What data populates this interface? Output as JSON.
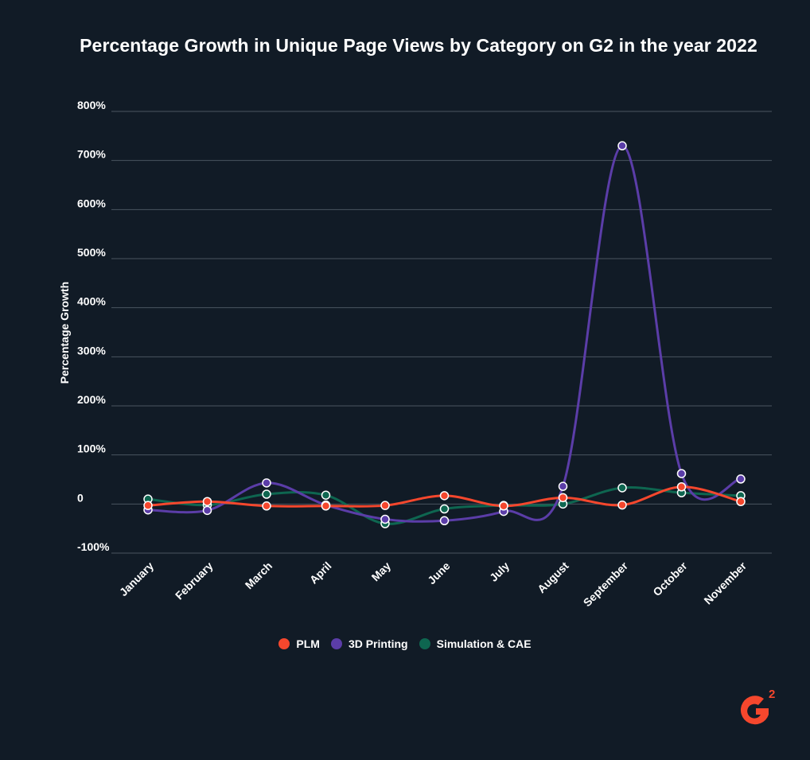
{
  "chart_data": {
    "type": "line",
    "title": "Percentage Growth in Unique Page Views by Category on G2 in the year 2022",
    "xlabel": "",
    "ylabel": "Percentage Growth",
    "categories": [
      "January",
      "February",
      "March",
      "April",
      "May",
      "June",
      "July",
      "August",
      "September",
      "October",
      "November"
    ],
    "yticks": [
      "-100%",
      "0",
      "100%",
      "200%",
      "300%",
      "400%",
      "500%",
      "600%",
      "700%",
      "800%"
    ],
    "ylim": [
      -100,
      800
    ],
    "grid": true,
    "legend_position": "bottom",
    "series": [
      {
        "name": "PLM",
        "color": "#f5472d",
        "values": [
          -3,
          5,
          -4,
          -4,
          -3,
          17,
          -4,
          13,
          -2,
          35,
          5
        ]
      },
      {
        "name": "3D Printing",
        "color": "#5b3da8",
        "values": [
          -12,
          -13,
          43,
          -2,
          -31,
          -34,
          -15,
          36,
          730,
          62,
          51
        ]
      },
      {
        "name": "Simulation & CAE",
        "color": "#0e6650",
        "values": [
          10,
          -2,
          20,
          18,
          -40,
          -10,
          -3,
          0,
          33,
          23,
          17
        ]
      }
    ]
  },
  "logo": {
    "text": "2",
    "color": "#f5472d"
  }
}
